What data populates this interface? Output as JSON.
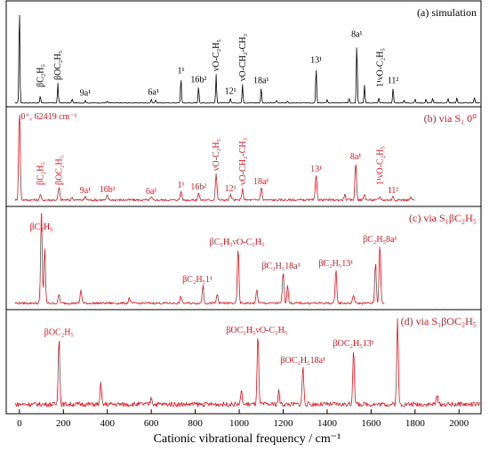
{
  "chart_data": {
    "type": "line",
    "xlabel": "Cationic vibrational frequency / cm⁻¹",
    "xlim": [
      -60,
      2100
    ],
    "xticks": [
      0,
      200,
      400,
      600,
      800,
      1000,
      1200,
      1400,
      1600,
      1800,
      2000
    ],
    "yunits": "arbitrary",
    "colors": {
      "simulation": "#000000",
      "experiment": "#e8141e"
    },
    "panels": [
      {
        "id": "a",
        "title": "(a) simulation",
        "color": "#000000",
        "peaks": [
          [
            0,
            1.0
          ],
          [
            95,
            0.07
          ],
          [
            175,
            0.2
          ],
          [
            240,
            0.04
          ],
          [
            300,
            0.03
          ],
          [
            400,
            0.02
          ],
          [
            600,
            0.04
          ],
          [
            620,
            0.035
          ],
          [
            735,
            0.26
          ],
          [
            815,
            0.17
          ],
          [
            895,
            0.29
          ],
          [
            960,
            0.05
          ],
          [
            1015,
            0.19
          ],
          [
            1100,
            0.16
          ],
          [
            1170,
            0.03
          ],
          [
            1220,
            0.02
          ],
          [
            1350,
            0.37
          ],
          [
            1400,
            0.04
          ],
          [
            1500,
            0.05
          ],
          [
            1535,
            0.63
          ],
          [
            1570,
            0.18
          ],
          [
            1635,
            0.05
          ],
          [
            1700,
            0.16
          ],
          [
            1750,
            0.03
          ],
          [
            1800,
            0.04
          ],
          [
            1850,
            0.04
          ],
          [
            1880,
            0.05
          ],
          [
            1950,
            0.05
          ],
          [
            1990,
            0.05
          ],
          [
            2070,
            0.06
          ]
        ],
        "labels": [
          {
            "text": "βC₂H₅",
            "x": 95,
            "vertical": true
          },
          {
            "text": "βOC₂H₅",
            "x": 175,
            "vertical": true
          },
          {
            "text": "9a¹",
            "x": 300,
            "vertical": false
          },
          {
            "text": "6a¹",
            "x": 610,
            "vertical": false
          },
          {
            "text": "1¹",
            "x": 735,
            "vertical": false
          },
          {
            "text": "16b²",
            "x": 815,
            "vertical": false
          },
          {
            "text": "νO-C₂H₅",
            "x": 895,
            "vertical": true
          },
          {
            "text": "12¹",
            "x": 960,
            "vertical": false
          },
          {
            "text": "νO-CH₂-CH₃",
            "x": 1015,
            "vertical": true
          },
          {
            "text": "18a¹",
            "x": 1100,
            "vertical": false
          },
          {
            "text": "13¹",
            "x": 1350,
            "vertical": false
          },
          {
            "text": "8a¹",
            "x": 1535,
            "vertical": false
          },
          {
            "text": "1¹νO-C₂H₅",
            "x": 1640,
            "vertical": true
          },
          {
            "text": "11²",
            "x": 1700,
            "vertical": false
          }
        ]
      },
      {
        "id": "b",
        "title": "(b) via S₁ 0⁰",
        "origin_note": "0⁺, 62419 cm⁻¹",
        "color": "#e8141e",
        "peaks": [
          [
            0,
            1.0
          ],
          [
            95,
            0.06
          ],
          [
            180,
            0.14
          ],
          [
            240,
            0.03
          ],
          [
            300,
            0.04
          ],
          [
            400,
            0.05
          ],
          [
            600,
            0.03
          ],
          [
            735,
            0.1
          ],
          [
            815,
            0.08
          ],
          [
            895,
            0.3
          ],
          [
            960,
            0.06
          ],
          [
            1015,
            0.12
          ],
          [
            1100,
            0.14
          ],
          [
            1350,
            0.28
          ],
          [
            1480,
            0.06
          ],
          [
            1530,
            0.42
          ],
          [
            1570,
            0.07
          ],
          [
            1640,
            0.04
          ],
          [
            1700,
            0.04
          ],
          [
            1780,
            0.03
          ]
        ],
        "labels": [
          {
            "text": "βC₂H₅",
            "x": 95,
            "vertical": true
          },
          {
            "text": "βOC₂H₅",
            "x": 180,
            "vertical": true
          },
          {
            "text": "9a¹",
            "x": 300,
            "vertical": false
          },
          {
            "text": "16b¹",
            "x": 400,
            "vertical": false
          },
          {
            "text": "6a¹",
            "x": 600,
            "vertical": false
          },
          {
            "text": "1¹",
            "x": 735,
            "vertical": false
          },
          {
            "text": "16b²",
            "x": 815,
            "vertical": false
          },
          {
            "text": "νO-C₂H₅",
            "x": 895,
            "vertical": true
          },
          {
            "text": "12¹",
            "x": 960,
            "vertical": false
          },
          {
            "text": "νO-CH₂-CH₃",
            "x": 1015,
            "vertical": true
          },
          {
            "text": "18a¹",
            "x": 1100,
            "vertical": false
          },
          {
            "text": "13¹",
            "x": 1350,
            "vertical": false
          },
          {
            "text": "8a¹",
            "x": 1530,
            "vertical": false
          },
          {
            "text": "1¹νO-C₂H₅",
            "x": 1640,
            "vertical": true
          },
          {
            "text": "11²",
            "x": 1700,
            "vertical": false
          }
        ]
      },
      {
        "id": "c",
        "title": "(c) via S₁βC₂H₅",
        "color": "#e8141e",
        "peaks": [
          [
            100,
            1.0
          ],
          [
            115,
            0.6
          ],
          [
            180,
            0.1
          ],
          [
            280,
            0.15
          ],
          [
            500,
            0.06
          ],
          [
            735,
            0.08
          ],
          [
            835,
            0.2
          ],
          [
            900,
            0.1
          ],
          [
            995,
            0.62
          ],
          [
            1080,
            0.15
          ],
          [
            1200,
            0.35
          ],
          [
            1220,
            0.2
          ],
          [
            1440,
            0.38
          ],
          [
            1520,
            0.1
          ],
          [
            1620,
            0.45
          ],
          [
            1640,
            0.65
          ]
        ],
        "labels": [
          {
            "text": "βC₂H₅",
            "x": 100,
            "vertical": false
          },
          {
            "text": "βC₂H₅1¹",
            "x": 810,
            "vertical": false
          },
          {
            "text": "βC₂H₅νO-C₂H₅",
            "x": 990,
            "vertical": false
          },
          {
            "text": "βC₂H₅18a¹",
            "x": 1190,
            "vertical": false
          },
          {
            "text": "βC₂H₅13¹",
            "x": 1440,
            "vertical": false
          },
          {
            "text": "βC₂H₅8a¹",
            "x": 1640,
            "vertical": false
          }
        ]
      },
      {
        "id": "d",
        "title": "(d) via S₁βOC₂H₅",
        "color": "#e8141e",
        "peaks": [
          [
            180,
            0.72
          ],
          [
            370,
            0.22
          ],
          [
            600,
            0.08
          ],
          [
            1010,
            0.14
          ],
          [
            1085,
            0.75
          ],
          [
            1180,
            0.14
          ],
          [
            1290,
            0.42
          ],
          [
            1520,
            0.6
          ],
          [
            1720,
            0.9
          ],
          [
            1900,
            0.1
          ]
        ],
        "labels": [
          {
            "text": "βOC₂H₅",
            "x": 180,
            "vertical": false
          },
          {
            "text": "βOC₂H₅νO-C₂H₅",
            "x": 1080,
            "vertical": false
          },
          {
            "text": "βOC₂H₅18a¹",
            "x": 1290,
            "vertical": false
          },
          {
            "text": "βOC₂H₅13¹",
            "x": 1520,
            "vertical": false
          }
        ]
      }
    ]
  }
}
